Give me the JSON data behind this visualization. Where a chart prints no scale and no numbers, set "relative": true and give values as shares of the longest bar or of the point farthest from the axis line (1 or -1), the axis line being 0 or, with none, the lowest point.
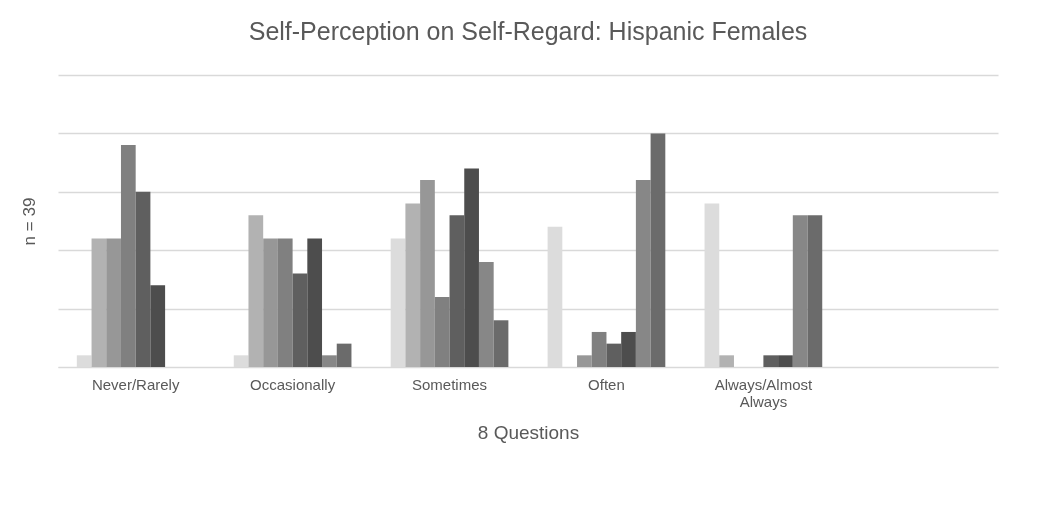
{
  "chart_data": {
    "type": "bar",
    "title": "Self-Perception on Self-Regard: Hispanic Females",
    "xlabel": "8 Questions",
    "ylabel": "n = 39",
    "categories": [
      "Never/Rarely",
      "Occasionally",
      "Sometimes",
      "Often",
      "Always/Almost Always",
      null
    ],
    "relative": true,
    "grid": "y",
    "legend": false,
    "series": [
      {
        "color": "#dcdcdc",
        "values": [
          0.05,
          0.05,
          0.55,
          0.6,
          0.7,
          null
        ]
      },
      {
        "color": "#b2b2b2",
        "values": [
          0.55,
          0.65,
          0.7,
          0,
          0.05,
          null
        ]
      },
      {
        "color": "#979797",
        "values": [
          0.55,
          0.55,
          0.8,
          0.05,
          0,
          null
        ]
      },
      {
        "color": "#808080",
        "values": [
          0.95,
          0.55,
          0.3,
          0.15,
          0,
          null
        ]
      },
      {
        "color": "#5f5f5f",
        "values": [
          0.75,
          0.4,
          0.65,
          0.1,
          0.05,
          null
        ]
      },
      {
        "color": "#4d4d4d",
        "values": [
          0.35,
          0.55,
          0.85,
          0.15,
          0.05,
          null
        ]
      },
      {
        "color": "#878787",
        "values": [
          0,
          0.05,
          0.45,
          0.8,
          0.65,
          null
        ]
      },
      {
        "color": "#6b6b6b",
        "values": [
          0,
          0.1,
          0.2,
          1,
          0.65,
          null
        ]
      }
    ]
  }
}
